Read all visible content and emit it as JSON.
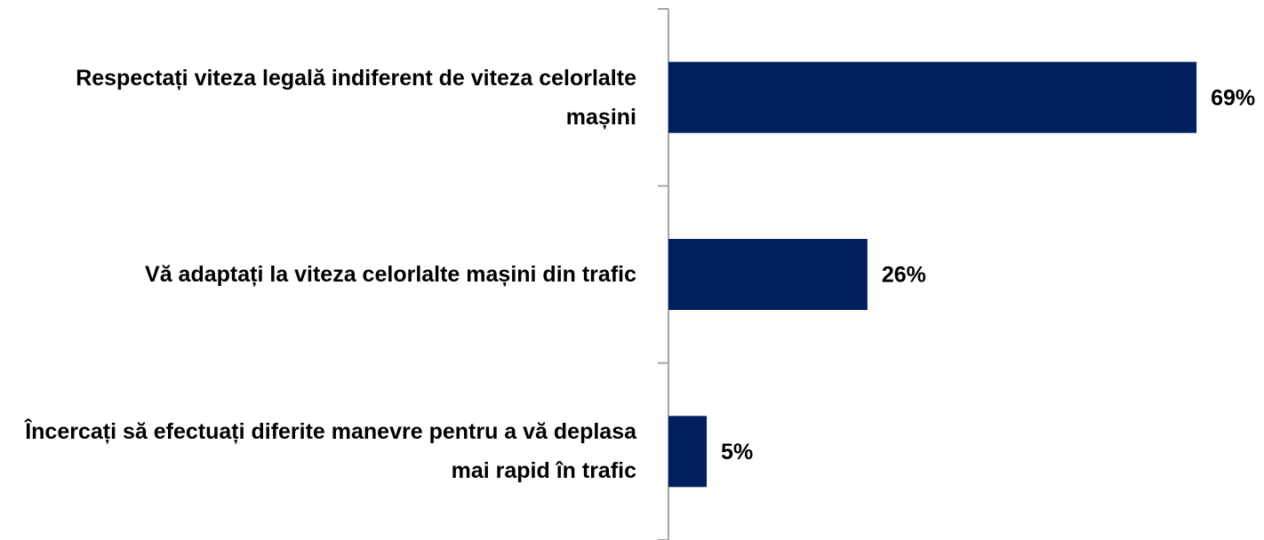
{
  "chart_data": {
    "type": "bar",
    "orientation": "horizontal",
    "categories": [
      "Respectați viteza legală indiferent de viteza celorlalte mașini",
      "Vă adaptați la viteza celorlalte mașini din trafic",
      "Încercați să efectuați diferite manevre pentru a vă deplasa mai rapid în trafic"
    ],
    "values": [
      69,
      26,
      5
    ],
    "value_labels": [
      "69%",
      "26%",
      "5%"
    ],
    "color": "#002060"
  }
}
